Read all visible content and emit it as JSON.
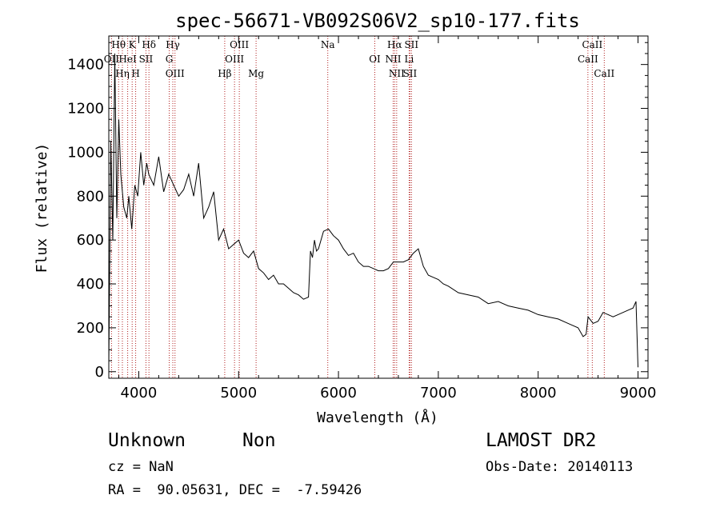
{
  "chart_data": {
    "type": "line",
    "title": "spec-56671-VB092S06V2_sp10-177.fits",
    "xlabel": "Wavelength (Å)",
    "ylabel": "Flux (relative)",
    "xlim": [
      3700,
      9100
    ],
    "ylim": [
      -30,
      1530
    ],
    "xticks": [
      4000,
      5000,
      6000,
      7000,
      8000,
      9000
    ],
    "yticks": [
      0,
      200,
      400,
      600,
      800,
      1000,
      1200,
      1400
    ],
    "series": [
      {
        "name": "flux",
        "x": [
          3700,
          3720,
          3740,
          3760,
          3780,
          3800,
          3820,
          3850,
          3880,
          3900,
          3930,
          3960,
          3990,
          4020,
          4050,
          4080,
          4100,
          4150,
          4200,
          4250,
          4300,
          4350,
          4400,
          4450,
          4500,
          4550,
          4600,
          4650,
          4700,
          4750,
          4800,
          4850,
          4900,
          4950,
          5000,
          5050,
          5100,
          5150,
          5200,
          5250,
          5300,
          5350,
          5400,
          5450,
          5500,
          5550,
          5600,
          5650,
          5700,
          5720,
          5740,
          5760,
          5780,
          5800,
          5850,
          5900,
          5950,
          6000,
          6050,
          6100,
          6150,
          6200,
          6250,
          6300,
          6350,
          6400,
          6450,
          6500,
          6550,
          6600,
          6650,
          6700,
          6750,
          6800,
          6850,
          6900,
          6950,
          7000,
          7050,
          7100,
          7200,
          7300,
          7400,
          7500,
          7600,
          7700,
          7800,
          7900,
          8000,
          8100,
          8200,
          8300,
          8400,
          8450,
          8480,
          8500,
          8550,
          8600,
          8650,
          8700,
          8750,
          8800,
          8850,
          8900,
          8950,
          8980,
          9000
        ],
        "y": [
          30,
          1050,
          600,
          1450,
          700,
          1150,
          900,
          750,
          700,
          800,
          650,
          850,
          800,
          1000,
          850,
          950,
          900,
          850,
          980,
          820,
          900,
          850,
          800,
          830,
          900,
          800,
          950,
          700,
          750,
          820,
          600,
          650,
          560,
          580,
          600,
          540,
          520,
          550,
          470,
          450,
          420,
          440,
          400,
          400,
          380,
          360,
          350,
          330,
          340,
          550,
          520,
          600,
          550,
          560,
          640,
          650,
          620,
          600,
          560,
          530,
          540,
          500,
          480,
          480,
          470,
          460,
          460,
          470,
          500,
          500,
          500,
          510,
          540,
          560,
          480,
          440,
          430,
          420,
          400,
          390,
          360,
          350,
          340,
          310,
          320,
          300,
          290,
          280,
          260,
          250,
          240,
          220,
          200,
          160,
          170,
          250,
          220,
          230,
          270,
          260,
          250,
          260,
          270,
          280,
          290,
          320,
          20
        ]
      }
    ],
    "lines": [
      {
        "label": "Hθ",
        "wave": 3798
      },
      {
        "label": "OII",
        "wave": 3727
      },
      {
        "label": "Hη",
        "wave": 3836
      },
      {
        "label": "K",
        "wave": 3934
      },
      {
        "label": "HeI",
        "wave": 3889
      },
      {
        "label": "H",
        "wave": 3969
      },
      {
        "label": "Hδ",
        "wave": 4102
      },
      {
        "label": "SII",
        "wave": 4072
      },
      {
        "label": "OIII",
        "wave": 4363
      },
      {
        "label": "Hγ",
        "wave": 4341
      },
      {
        "label": "G",
        "wave": 4305
      },
      {
        "label": "Hβ",
        "wave": 4861
      },
      {
        "label": "OIII",
        "wave": 5007
      },
      {
        "label": "OIII",
        "wave": 4959
      },
      {
        "label": "Mg",
        "wave": 5175
      },
      {
        "label": "Na",
        "wave": 5893
      },
      {
        "label": "OI",
        "wave": 6364
      },
      {
        "label": "NII",
        "wave": 6583
      },
      {
        "label": "Hα",
        "wave": 6563
      },
      {
        "label": "NII",
        "wave": 6548
      },
      {
        "label": "SII",
        "wave": 6716
      },
      {
        "label": "SII",
        "wave": 6731
      },
      {
        "label": "Li",
        "wave": 6708
      },
      {
        "label": "CaII",
        "wave": 8662
      },
      {
        "label": "CaII",
        "wave": 8542
      },
      {
        "label": "CaII",
        "wave": 8498
      }
    ]
  },
  "info": {
    "class_label": "Unknown",
    "subclass_label": "Non",
    "survey": "LAMOST DR2",
    "cz": "cz = NaN",
    "obs_date": "Obs-Date: 20140113",
    "coords": "RA =  90.05631, DEC =  -7.59426"
  },
  "colors": {
    "line_marker": "#b22222",
    "flux": "#000000"
  }
}
